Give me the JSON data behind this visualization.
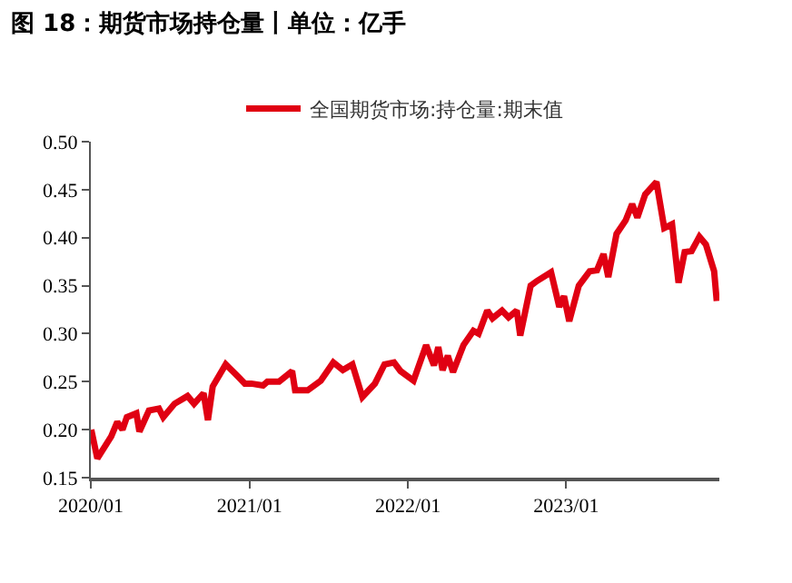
{
  "chart_data": {
    "type": "line",
    "title": "图 18：期货市场持仓量丨单位：亿手",
    "x": [
      "2020-01-02",
      "2020-01-16",
      "2020-02-17",
      "2020-03-02",
      "2020-03-14",
      "2020-03-24",
      "2020-04-15",
      "2020-04-22",
      "2020-05-14",
      "2020-06-06",
      "2020-06-16",
      "2020-07-12",
      "2020-08-11",
      "2020-08-26",
      "2020-09-17",
      "2020-09-27",
      "2020-10-08",
      "2020-11-07",
      "2020-12-06",
      "2020-12-21",
      "2021-01-05",
      "2021-02-01",
      "2021-02-11",
      "2021-03-10",
      "2021-04-09",
      "2021-04-16",
      "2021-05-15",
      "2021-06-14",
      "2021-07-13",
      "2021-08-04",
      "2021-08-26",
      "2021-09-18",
      "2021-10-17",
      "2021-11-08",
      "2021-11-30",
      "2021-12-15",
      "2022-01-14",
      "2022-02-12",
      "2022-03-02",
      "2022-03-12",
      "2022-03-22",
      "2022-04-03",
      "2022-04-15",
      "2022-05-09",
      "2022-06-01",
      "2022-06-13",
      "2022-07-03",
      "2022-07-15",
      "2022-08-06",
      "2022-08-21",
      "2022-09-09",
      "2022-09-17",
      "2022-10-11",
      "2022-10-26",
      "2022-11-27",
      "2022-12-16",
      "2022-12-27",
      "2023-01-08",
      "2023-01-30",
      "2023-02-24",
      "2023-03-13",
      "2023-03-28",
      "2023-04-08",
      "2023-04-27",
      "2023-05-18",
      "2023-06-02",
      "2023-06-14",
      "2023-07-02",
      "2023-07-28",
      "2023-08-15",
      "2023-09-02",
      "2023-09-17",
      "2023-10-01",
      "2023-10-17",
      "2023-11-04",
      "2023-11-19",
      "2023-12-08",
      "2023-12-14"
    ],
    "series": [
      {
        "name": "全国期货市场:持仓量:期末值",
        "color": "#e00012",
        "values": [
          0.2,
          0.17,
          0.193,
          0.208,
          0.2,
          0.213,
          0.217,
          0.198,
          0.22,
          0.222,
          0.213,
          0.227,
          0.235,
          0.227,
          0.238,
          0.21,
          0.245,
          0.268,
          0.255,
          0.248,
          0.248,
          0.246,
          0.25,
          0.25,
          0.261,
          0.241,
          0.241,
          0.251,
          0.27,
          0.262,
          0.268,
          0.234,
          0.248,
          0.268,
          0.27,
          0.261,
          0.251,
          0.288,
          0.267,
          0.286,
          0.262,
          0.277,
          0.26,
          0.288,
          0.303,
          0.3,
          0.324,
          0.316,
          0.324,
          0.317,
          0.324,
          0.298,
          0.35,
          0.355,
          0.364,
          0.328,
          0.339,
          0.313,
          0.35,
          0.365,
          0.366,
          0.383,
          0.359,
          0.404,
          0.418,
          0.435,
          0.421,
          0.445,
          0.458,
          0.41,
          0.414,
          0.353,
          0.385,
          0.386,
          0.401,
          0.393,
          0.365,
          0.334
        ]
      }
    ],
    "xlim": [
      "2020-01-01",
      "2023-12-20"
    ],
    "xticks": [
      {
        "value": "2020-01-01",
        "label": "2020/01"
      },
      {
        "value": "2021-01-01",
        "label": "2021/01"
      },
      {
        "value": "2022-01-01",
        "label": "2022/01"
      },
      {
        "value": "2023-01-01",
        "label": "2023/01"
      }
    ],
    "ylim": [
      0.15,
      0.5
    ],
    "yticks": [
      {
        "value": 0.15,
        "label": "0.15"
      },
      {
        "value": 0.2,
        "label": "0.20"
      },
      {
        "value": 0.25,
        "label": "0.25"
      },
      {
        "value": 0.3,
        "label": "0.30"
      },
      {
        "value": 0.35,
        "label": "0.35"
      },
      {
        "value": 0.4,
        "label": "0.40"
      },
      {
        "value": 0.45,
        "label": "0.45"
      },
      {
        "value": 0.5,
        "label": "0.50"
      }
    ],
    "grid": false,
    "legend": "top",
    "marker": "none",
    "line_style": "solid"
  }
}
